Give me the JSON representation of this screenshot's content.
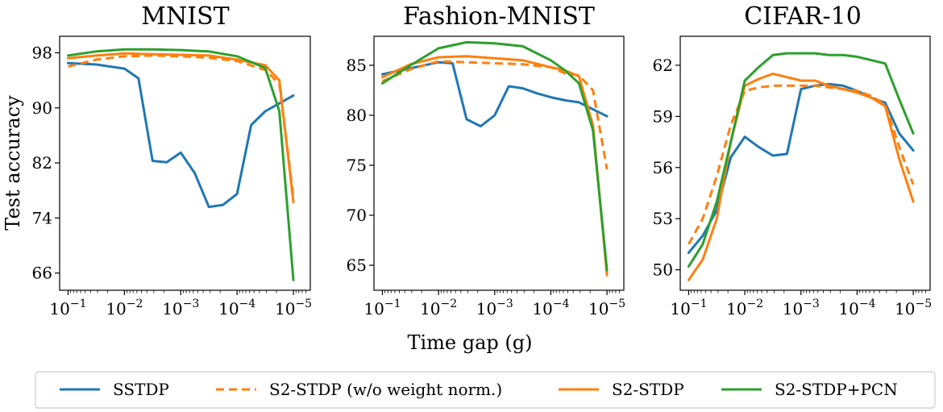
{
  "figure": {
    "ylabel": "Test accuracy",
    "xlabel": "Time gap (g)"
  },
  "legend": {
    "entries": [
      {
        "name": "SSTDP",
        "color": "#1f77b4",
        "dash": "solid"
      },
      {
        "name": "S2-STDP (w/o weight norm.)",
        "color": "#ff7f0e",
        "dash": "dashed"
      },
      {
        "name": "S2-STDP",
        "color": "#ff7f0e",
        "dash": "solid"
      },
      {
        "name": "S2-STDP+PCN",
        "color": "#2ca02c",
        "dash": "solid"
      }
    ]
  },
  "chart_data": [
    {
      "type": "line",
      "title": "MNIST",
      "xscale": "log",
      "xlim": [
        -0.85,
        -5.3
      ],
      "ylim": [
        63.5,
        100.4
      ],
      "yticks": [
        66,
        74,
        82,
        90,
        98
      ],
      "xticks": [
        -1,
        -2,
        -3,
        -4,
        -5
      ],
      "series": [
        {
          "name": "SSTDP",
          "x": [
            -1,
            -1.5,
            -2,
            -2.25,
            -2.5,
            -2.75,
            -3.0,
            -3.25,
            -3.5,
            -3.75,
            -4.0,
            -4.25,
            -4.5,
            -5.0
          ],
          "y": [
            96.5,
            96.3,
            95.7,
            94.3,
            82.3,
            82.1,
            83.5,
            80.5,
            75.6,
            75.9,
            77.5,
            87.5,
            89.5,
            91.8
          ]
        },
        {
          "name": "S2-STDP (w/o weight norm.)",
          "x": [
            -1,
            -1.5,
            -2,
            -2.5,
            -3,
            -3.5,
            -4.0,
            -4.5,
            -4.75,
            -5.0
          ],
          "y": [
            96.0,
            97.0,
            97.5,
            97.6,
            97.5,
            97.3,
            96.8,
            95.5,
            93.5,
            77.0
          ]
        },
        {
          "name": "S2-STDP",
          "x": [
            -1,
            -1.5,
            -2,
            -2.5,
            -3,
            -3.5,
            -4.0,
            -4.5,
            -4.75,
            -5.0
          ],
          "y": [
            97.2,
            97.6,
            97.9,
            97.8,
            97.7,
            97.6,
            97.0,
            96.2,
            94.0,
            76.3
          ]
        },
        {
          "name": "S2-STDP+PCN",
          "x": [
            -1,
            -1.5,
            -2,
            -2.5,
            -3,
            -3.5,
            -4.0,
            -4.5,
            -4.75,
            -5.0
          ],
          "y": [
            97.6,
            98.2,
            98.5,
            98.5,
            98.4,
            98.2,
            97.5,
            95.8,
            89.5,
            65.0
          ]
        }
      ]
    },
    {
      "type": "line",
      "title": "Fashion-MNIST",
      "xscale": "log",
      "xlim": [
        -0.85,
        -5.3
      ],
      "ylim": [
        62.5,
        87.9
      ],
      "yticks": [
        65,
        70,
        75,
        80,
        85
      ],
      "xticks": [
        -1,
        -2,
        -3,
        -4,
        -5
      ],
      "series": [
        {
          "name": "SSTDP",
          "x": [
            -1,
            -1.5,
            -2,
            -2.25,
            -2.5,
            -2.75,
            -3.0,
            -3.25,
            -3.5,
            -3.75,
            -4.0,
            -4.25,
            -4.5,
            -5.0
          ],
          "y": [
            84.1,
            84.7,
            85.3,
            85.2,
            79.6,
            78.9,
            80.0,
            82.9,
            82.7,
            82.2,
            81.8,
            81.5,
            81.3,
            79.9
          ]
        },
        {
          "name": "S2-STDP (w/o weight norm.)",
          "x": [
            -1,
            -1.5,
            -2,
            -2.5,
            -3,
            -3.5,
            -4.0,
            -4.25,
            -4.5,
            -4.75,
            -5.0
          ],
          "y": [
            83.4,
            84.6,
            85.4,
            85.3,
            85.2,
            85.1,
            84.8,
            84.2,
            84.0,
            82.5,
            74.6
          ]
        },
        {
          "name": "S2-STDP",
          "x": [
            -1,
            -1.5,
            -2,
            -2.5,
            -3,
            -3.5,
            -4.0,
            -4.25,
            -4.5,
            -4.75,
            -5.0
          ],
          "y": [
            83.8,
            85.1,
            85.8,
            85.9,
            85.7,
            85.5,
            84.8,
            84.5,
            83.9,
            79.0,
            64.0
          ]
        },
        {
          "name": "S2-STDP+PCN",
          "x": [
            -1,
            -1.5,
            -2,
            -2.5,
            -3,
            -3.5,
            -4.0,
            -4.25,
            -4.5,
            -4.75,
            -5.0
          ],
          "y": [
            83.2,
            85.0,
            86.7,
            87.3,
            87.2,
            86.9,
            85.5,
            84.5,
            83.2,
            78.5,
            64.5
          ]
        }
      ]
    },
    {
      "type": "line",
      "title": "CIFAR-10",
      "xscale": "log",
      "xlim": [
        -0.85,
        -5.3
      ],
      "ylim": [
        48.8,
        63.7
      ],
      "yticks": [
        50,
        53,
        56,
        59,
        62
      ],
      "xticks": [
        -1,
        -2,
        -3,
        -4,
        -5
      ],
      "series": [
        {
          "name": "SSTDP",
          "x": [
            -1,
            -1.25,
            -1.5,
            -1.75,
            -2.0,
            -2.25,
            -2.5,
            -2.75,
            -3.0,
            -3.25,
            -3.5,
            -3.75,
            -4.0,
            -4.25,
            -4.5,
            -4.75,
            -5.0
          ],
          "y": [
            51.0,
            52.0,
            53.5,
            56.6,
            57.8,
            57.2,
            56.7,
            56.8,
            60.6,
            60.8,
            60.9,
            60.8,
            60.5,
            60.1,
            59.8,
            58.0,
            57.0
          ]
        },
        {
          "name": "S2-STDP (w/o weight norm.)",
          "x": [
            -1,
            -1.25,
            -1.5,
            -1.75,
            -2.0,
            -2.25,
            -2.5,
            -2.75,
            -3.0,
            -3.25,
            -3.5,
            -3.75,
            -4.0,
            -4.25,
            -4.5,
            -4.75,
            -5.0
          ],
          "y": [
            51.5,
            53.0,
            55.5,
            58.5,
            60.5,
            60.7,
            60.8,
            60.8,
            60.8,
            60.8,
            60.7,
            60.6,
            60.5,
            60.2,
            59.7,
            57.2,
            55.0
          ]
        },
        {
          "name": "S2-STDP",
          "x": [
            -1,
            -1.25,
            -1.5,
            -1.75,
            -2.0,
            -2.25,
            -2.5,
            -2.75,
            -3.0,
            -3.25,
            -3.5,
            -3.75,
            -4.0,
            -4.25,
            -4.5,
            -4.75,
            -5.0
          ],
          "y": [
            49.4,
            50.6,
            53.0,
            57.5,
            60.8,
            61.2,
            61.5,
            61.3,
            61.1,
            61.1,
            60.8,
            60.6,
            60.4,
            60.1,
            59.6,
            56.5,
            54.0
          ]
        },
        {
          "name": "S2-STDP+PCN",
          "x": [
            -1,
            -1.25,
            -1.5,
            -1.75,
            -2.0,
            -2.25,
            -2.5,
            -2.75,
            -3.0,
            -3.25,
            -3.5,
            -3.75,
            -4.0,
            -4.25,
            -4.5,
            -4.75,
            -5.0
          ],
          "y": [
            50.2,
            51.5,
            54.0,
            57.5,
            61.1,
            61.9,
            62.6,
            62.7,
            62.7,
            62.7,
            62.6,
            62.6,
            62.5,
            62.3,
            62.1,
            60.0,
            58.0
          ]
        }
      ]
    }
  ]
}
